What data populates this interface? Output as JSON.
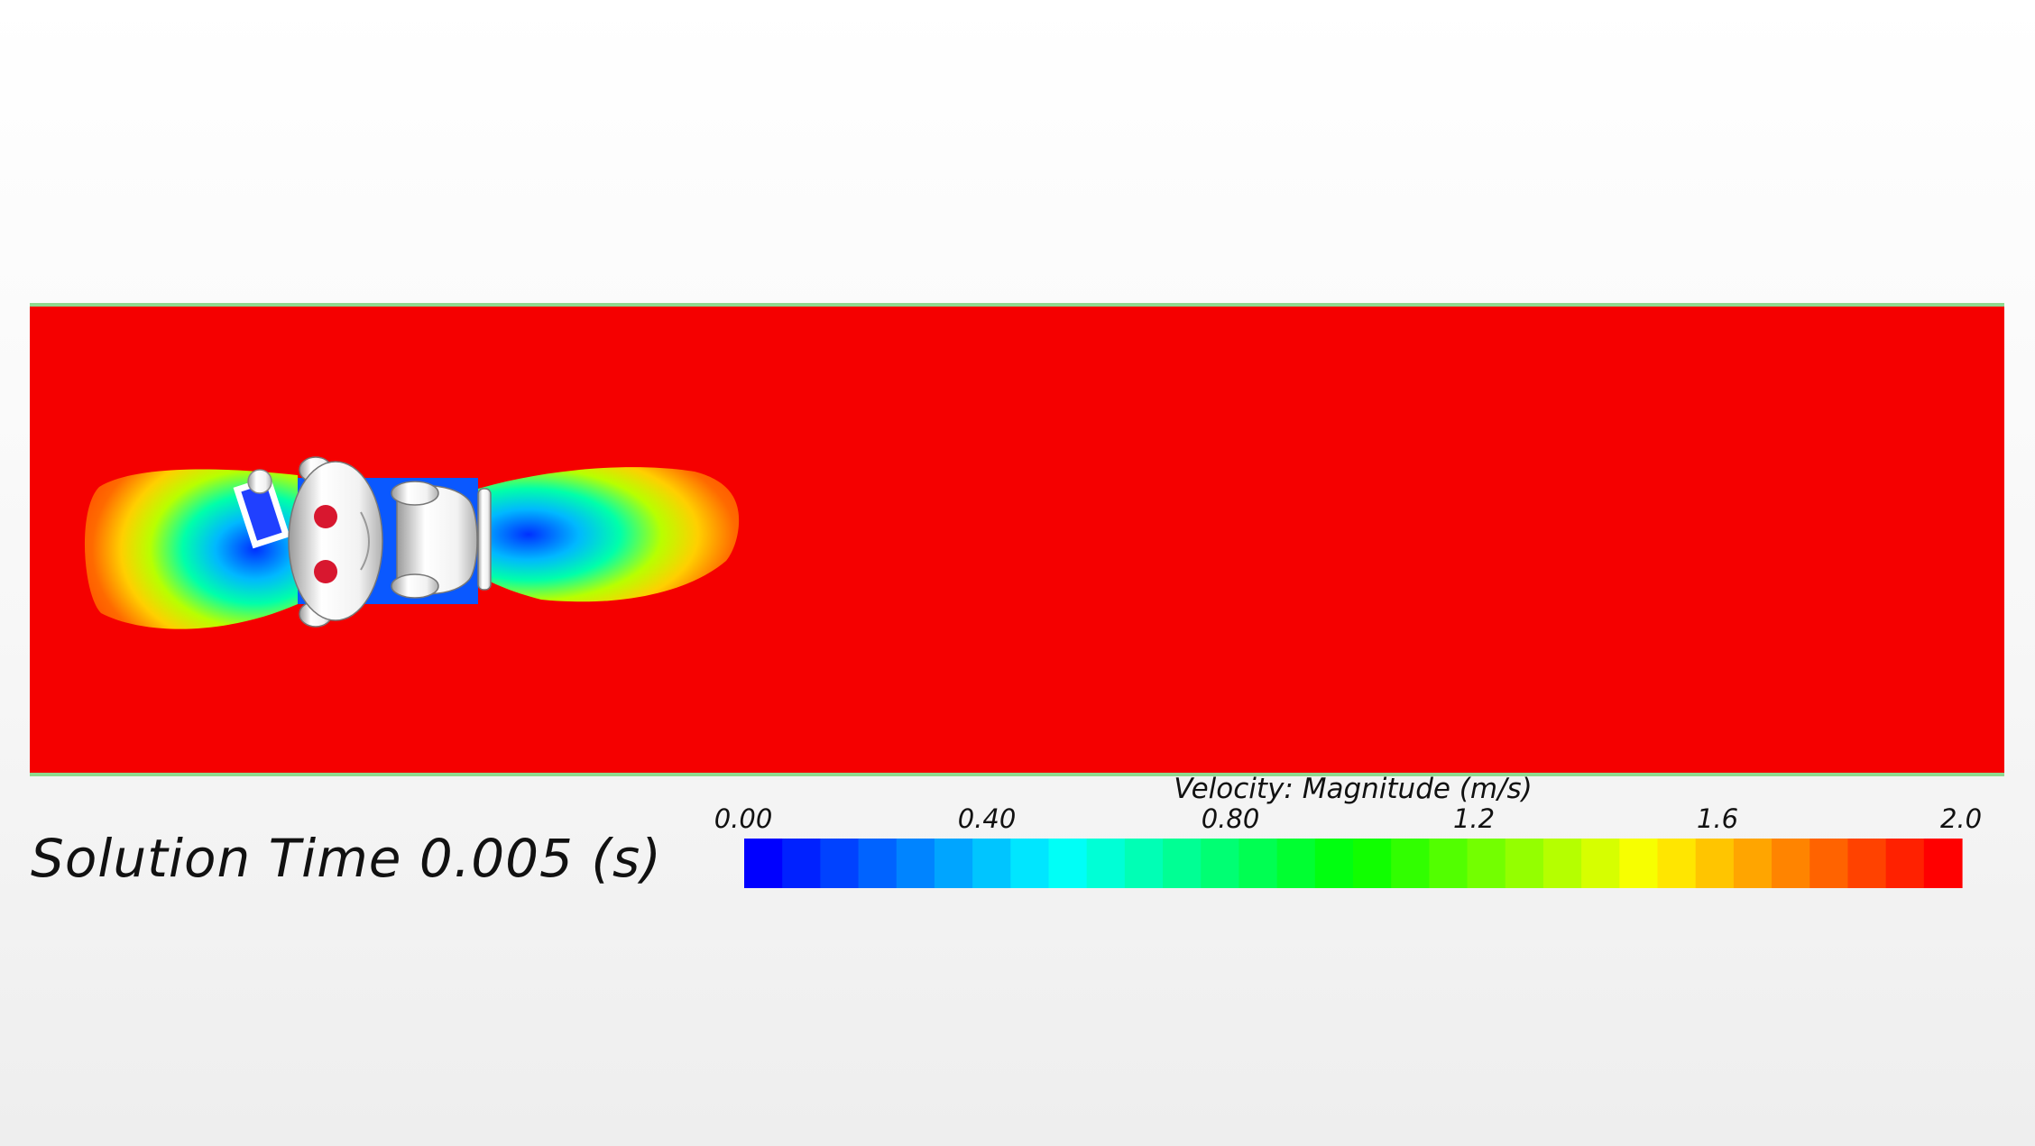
{
  "annotation": {
    "solution_time": "Solution Time 0.005 (s)"
  },
  "legend": {
    "title": "Velocity: Magnitude (m/s)",
    "ticks": [
      {
        "value": 0.0,
        "label": "0.00"
      },
      {
        "value": 0.4,
        "label": "0.40"
      },
      {
        "value": 0.8,
        "label": "0.80"
      },
      {
        "value": 1.2,
        "label": "1.2"
      },
      {
        "value": 1.6,
        "label": "1.6"
      },
      {
        "value": 2.0,
        "label": "2.0"
      }
    ],
    "range": [
      0.0,
      2.0
    ],
    "bands": 32,
    "colors": [
      "#0000ff",
      "#00ffff",
      "#00ff00",
      "#ffff00",
      "#ff0000"
    ]
  },
  "field": {
    "freestream_color": "#f50000",
    "wall_color": "#8fd98f",
    "body_color": "#ffffff",
    "eye_color": "#d8172f"
  }
}
